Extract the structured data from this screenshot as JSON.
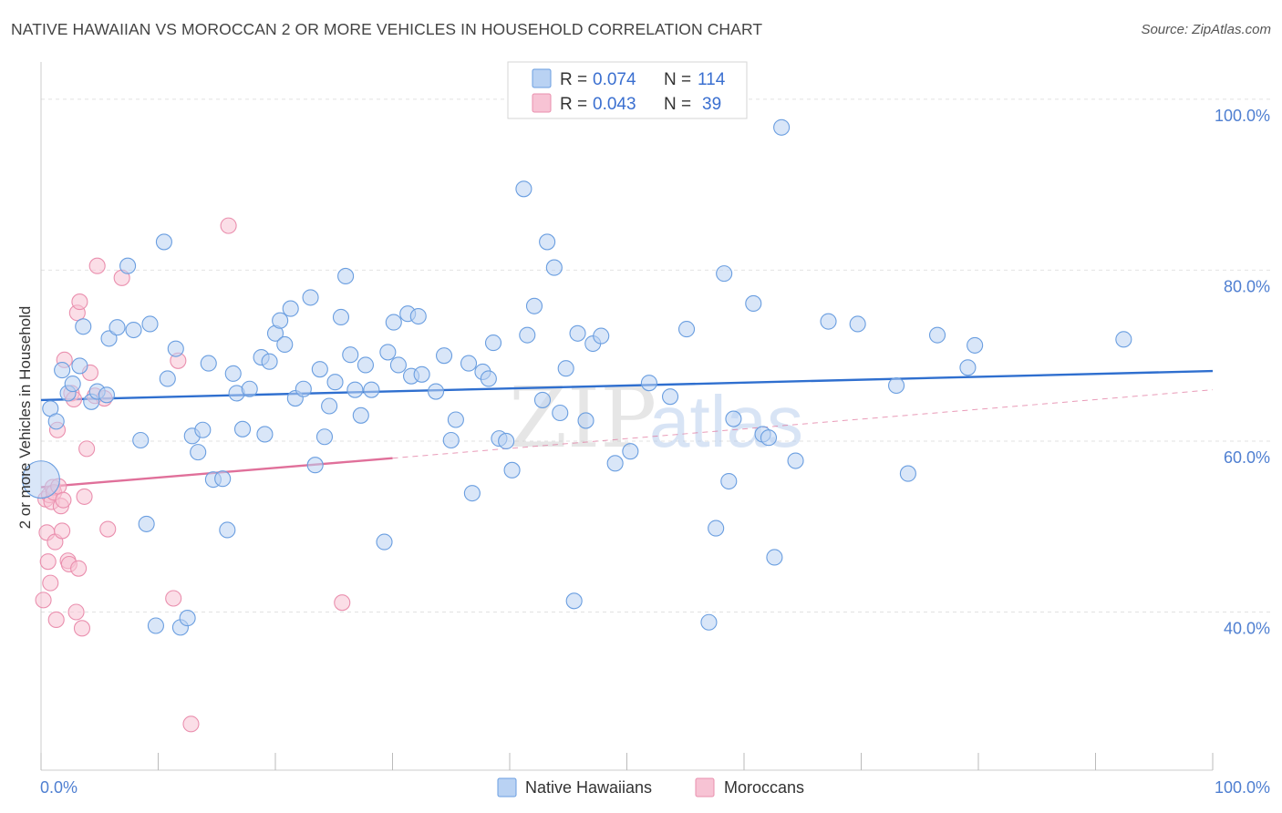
{
  "title": "NATIVE HAWAIIAN VS MOROCCAN 2 OR MORE VEHICLES IN HOUSEHOLD CORRELATION CHART",
  "source": "Source: ZipAtlas.com",
  "watermark": {
    "zip": "ZIP",
    "atlas": "atlas"
  },
  "colors": {
    "blue_fill": "#b9d2f3",
    "blue_stroke": "#6a9ee0",
    "blue_line": "#2f6fcf",
    "pink_fill": "#f7c3d4",
    "pink_stroke": "#ea8fae",
    "pink_line": "#e0709a",
    "grid": "#e2e2e2",
    "tick_text": "#4f7fd1"
  },
  "legend": {
    "rows": [
      {
        "r_label": "R =",
        "r_value": "0.074",
        "n_label": "N =",
        "n_value": "114"
      },
      {
        "r_label": "R =",
        "r_value": "0.043",
        "n_label": "N =",
        "n_value": "39"
      }
    ]
  },
  "bottom_legend": [
    "Native Hawaiians",
    "Moroccans"
  ],
  "chart_data": {
    "type": "scatter",
    "title": "NATIVE HAWAIIAN VS MOROCCAN 2 OR MORE VEHICLES IN HOUSEHOLD CORRELATION CHART",
    "xlabel": "",
    "ylabel": "2 or more Vehicles in Household",
    "x_tick_labels": [
      "0.0%",
      "100.0%"
    ],
    "y_tick_labels": [
      "40.0%",
      "60.0%",
      "80.0%",
      "100.0%"
    ],
    "y_ticks": [
      40,
      60,
      80,
      100
    ],
    "xlim": [
      0,
      100
    ],
    "ylim": [
      21.5,
      103.5
    ],
    "grid": true,
    "legend_position": "top-center",
    "series": [
      {
        "name": "Native Hawaiians",
        "r": 0.074,
        "n": 114,
        "trend": {
          "x0": 0,
          "y0": 64.8,
          "x1": 100,
          "y1": 68.2
        },
        "points": [
          [
            0,
            55.5,
            2.4
          ],
          [
            0.8,
            63.8,
            1
          ],
          [
            1.3,
            62.3,
            1
          ],
          [
            1.8,
            68.3,
            1
          ],
          [
            2.3,
            65.6,
            1
          ],
          [
            2.7,
            66.7,
            1
          ],
          [
            3.3,
            68.8,
            1
          ],
          [
            3.6,
            73.4,
            1
          ],
          [
            4.3,
            64.6,
            1
          ],
          [
            4.8,
            65.8,
            1
          ],
          [
            5.6,
            65.4,
            1
          ],
          [
            5.8,
            72.0,
            1
          ],
          [
            6.5,
            73.3,
            1
          ],
          [
            7.4,
            80.5,
            1
          ],
          [
            7.9,
            73.0,
            1
          ],
          [
            8.5,
            60.1,
            1
          ],
          [
            9.0,
            50.3,
            1
          ],
          [
            9.3,
            73.7,
            1
          ],
          [
            9.8,
            38.4,
            1
          ],
          [
            10.5,
            83.3,
            1
          ],
          [
            10.8,
            67.3,
            1
          ],
          [
            11.5,
            70.8,
            1
          ],
          [
            11.9,
            38.2,
            1
          ],
          [
            12.5,
            39.3,
            1
          ],
          [
            12.9,
            60.6,
            1
          ],
          [
            13.4,
            58.7,
            1
          ],
          [
            13.8,
            61.3,
            1
          ],
          [
            14.3,
            69.1,
            1
          ],
          [
            14.7,
            55.5,
            1
          ],
          [
            15.5,
            55.6,
            1
          ],
          [
            15.9,
            49.6,
            1
          ],
          [
            16.4,
            67.9,
            1
          ],
          [
            16.7,
            65.6,
            1
          ],
          [
            17.2,
            61.4,
            1
          ],
          [
            17.8,
            66.1,
            1
          ],
          [
            18.8,
            69.8,
            1
          ],
          [
            19.1,
            60.8,
            1
          ],
          [
            19.5,
            69.3,
            1
          ],
          [
            20.0,
            72.6,
            1
          ],
          [
            20.4,
            74.1,
            1
          ],
          [
            20.8,
            71.3,
            1
          ],
          [
            21.3,
            75.5,
            1
          ],
          [
            21.7,
            65.0,
            1
          ],
          [
            22.4,
            66.1,
            1
          ],
          [
            23.0,
            76.8,
            1
          ],
          [
            23.4,
            57.2,
            1
          ],
          [
            23.8,
            68.4,
            1
          ],
          [
            24.2,
            60.5,
            1
          ],
          [
            24.6,
            64.1,
            1
          ],
          [
            25.1,
            66.9,
            1
          ],
          [
            25.6,
            74.5,
            1
          ],
          [
            26.0,
            79.3,
            1
          ],
          [
            26.4,
            70.1,
            1
          ],
          [
            26.8,
            66.0,
            1
          ],
          [
            27.3,
            63.0,
            1
          ],
          [
            27.7,
            68.9,
            1
          ],
          [
            28.2,
            66.0,
            1
          ],
          [
            29.3,
            48.2,
            1
          ],
          [
            29.6,
            70.4,
            1
          ],
          [
            30.1,
            73.9,
            1
          ],
          [
            30.5,
            68.9,
            1
          ],
          [
            31.3,
            74.9,
            1
          ],
          [
            31.6,
            67.6,
            1
          ],
          [
            32.2,
            74.6,
            1
          ],
          [
            32.5,
            67.8,
            1
          ],
          [
            33.7,
            65.8,
            1
          ],
          [
            34.4,
            70.0,
            1
          ],
          [
            35.0,
            60.1,
            1
          ],
          [
            35.4,
            62.5,
            1
          ],
          [
            36.5,
            69.1,
            1
          ],
          [
            36.8,
            53.9,
            1
          ],
          [
            37.7,
            68.1,
            1
          ],
          [
            38.2,
            67.3,
            1
          ],
          [
            38.6,
            71.5,
            1
          ],
          [
            39.1,
            60.3,
            1
          ],
          [
            39.7,
            60.0,
            1
          ],
          [
            40.2,
            56.6,
            1
          ],
          [
            41.2,
            89.5,
            1
          ],
          [
            41.5,
            72.4,
            1
          ],
          [
            42.1,
            75.8,
            1
          ],
          [
            42.8,
            64.8,
            1
          ],
          [
            43.2,
            83.3,
            1
          ],
          [
            43.8,
            80.3,
            1
          ],
          [
            44.3,
            63.3,
            1
          ],
          [
            44.8,
            68.5,
            1
          ],
          [
            45.5,
            41.3,
            1
          ],
          [
            45.8,
            72.6,
            1
          ],
          [
            46.5,
            62.4,
            1
          ],
          [
            47.1,
            71.4,
            1
          ],
          [
            47.8,
            72.3,
            1
          ],
          [
            49.0,
            57.4,
            1
          ],
          [
            50.3,
            58.8,
            1
          ],
          [
            51.9,
            66.8,
            1
          ],
          [
            53.7,
            65.2,
            1
          ],
          [
            55.1,
            73.1,
            1
          ],
          [
            57.0,
            38.8,
            1
          ],
          [
            57.6,
            49.8,
            1
          ],
          [
            58.3,
            79.6,
            1
          ],
          [
            58.7,
            55.3,
            1
          ],
          [
            59.1,
            62.6,
            1
          ],
          [
            60.8,
            76.1,
            1
          ],
          [
            61.6,
            60.8,
            1
          ],
          [
            62.1,
            60.4,
            1
          ],
          [
            62.6,
            46.4,
            1
          ],
          [
            63.2,
            96.7,
            1
          ],
          [
            64.4,
            57.7,
            1
          ],
          [
            67.2,
            74.0,
            1
          ],
          [
            69.7,
            73.7,
            1
          ],
          [
            73.0,
            66.5,
            1
          ],
          [
            74.0,
            56.2,
            1
          ],
          [
            76.5,
            72.4,
            1
          ],
          [
            79.1,
            68.6,
            1
          ],
          [
            79.7,
            71.2,
            1
          ],
          [
            92.4,
            71.9,
            1
          ]
        ]
      },
      {
        "name": "Moroccans",
        "r": 0.043,
        "n": 39,
        "trend": {
          "x0": 0,
          "y0": 54.6,
          "x1": 30,
          "y1": 58.0
        },
        "trend_dashed_extension": {
          "x0": 30,
          "y0": 58.0,
          "x1": 100,
          "y1": 66.0
        },
        "points": [
          [
            0.2,
            41.4,
            1
          ],
          [
            0.4,
            53.2,
            1
          ],
          [
            0.5,
            49.3,
            1
          ],
          [
            0.6,
            45.9,
            1
          ],
          [
            0.7,
            53.7,
            1
          ],
          [
            0.8,
            43.4,
            1
          ],
          [
            0.9,
            52.9,
            1
          ],
          [
            1.0,
            54.6,
            1
          ],
          [
            1.1,
            54.0,
            1
          ],
          [
            1.2,
            48.2,
            1
          ],
          [
            1.3,
            39.1,
            1
          ],
          [
            1.4,
            61.3,
            1
          ],
          [
            1.5,
            54.7,
            1
          ],
          [
            1.7,
            52.4,
            1
          ],
          [
            1.8,
            49.5,
            1
          ],
          [
            1.9,
            53.1,
            1
          ],
          [
            2.0,
            69.5,
            1
          ],
          [
            2.3,
            46.0,
            1
          ],
          [
            2.4,
            45.6,
            1
          ],
          [
            2.6,
            65.6,
            1
          ],
          [
            2.8,
            64.9,
            1
          ],
          [
            3.0,
            40.0,
            1
          ],
          [
            3.1,
            75.0,
            1
          ],
          [
            3.2,
            45.1,
            1
          ],
          [
            3.3,
            76.3,
            1
          ],
          [
            3.5,
            38.1,
            1
          ],
          [
            3.7,
            53.5,
            1
          ],
          [
            3.9,
            59.1,
            1
          ],
          [
            4.2,
            68.0,
            1
          ],
          [
            4.6,
            65.3,
            1
          ],
          [
            4.8,
            80.5,
            1
          ],
          [
            5.4,
            65.0,
            1
          ],
          [
            5.7,
            49.7,
            1
          ],
          [
            6.9,
            79.1,
            1
          ],
          [
            11.3,
            41.6,
            1
          ],
          [
            11.7,
            69.4,
            1
          ],
          [
            12.8,
            26.9,
            1
          ],
          [
            16.0,
            85.2,
            1
          ],
          [
            25.7,
            41.1,
            1
          ]
        ]
      }
    ]
  }
}
